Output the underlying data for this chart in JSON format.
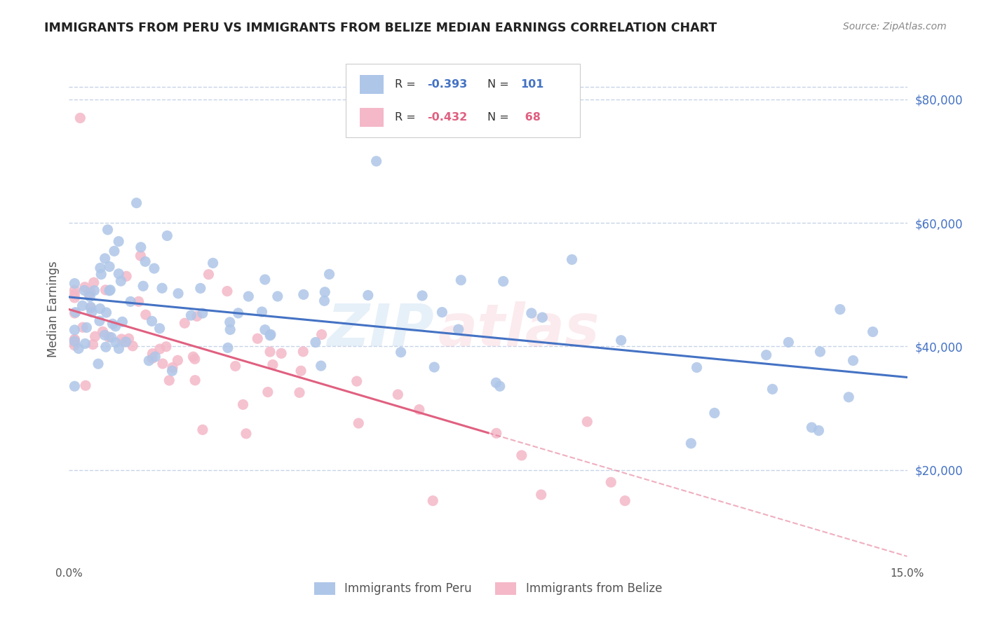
{
  "title": "IMMIGRANTS FROM PERU VS IMMIGRANTS FROM BELIZE MEDIAN EARNINGS CORRELATION CHART",
  "source": "Source: ZipAtlas.com",
  "ylabel": "Median Earnings",
  "xmin": 0.0,
  "xmax": 0.15,
  "ymin": 5000,
  "ymax": 87000,
  "yticks": [
    20000,
    40000,
    60000,
    80000
  ],
  "ytick_labels": [
    "$20,000",
    "$40,000",
    "$60,000",
    "$80,000"
  ],
  "peru_R": -0.393,
  "peru_N": 101,
  "belize_R": -0.432,
  "belize_N": 68,
  "peru_color": "#aec6e8",
  "peru_line_color": "#4472c4",
  "belize_color": "#f4b8c8",
  "belize_line_color": "#e06080",
  "background_color": "#ffffff",
  "grid_color": "#c8d4e8",
  "watermark_color_1": "#5b9bd5",
  "watermark_color_2": "#e87e8e",
  "title_color": "#222222",
  "source_color": "#888888",
  "peru_trend_x0": 0.0,
  "peru_trend_y0": 48000,
  "peru_trend_x1": 0.15,
  "peru_trend_y1": 35000,
  "belize_trend_x0": 0.0,
  "belize_trend_y0": 46000,
  "belize_trend_x1_solid": 0.075,
  "belize_trend_y1_solid": 26000,
  "belize_trend_x1_dash": 0.15,
  "belize_trend_y1_dash": 6000
}
